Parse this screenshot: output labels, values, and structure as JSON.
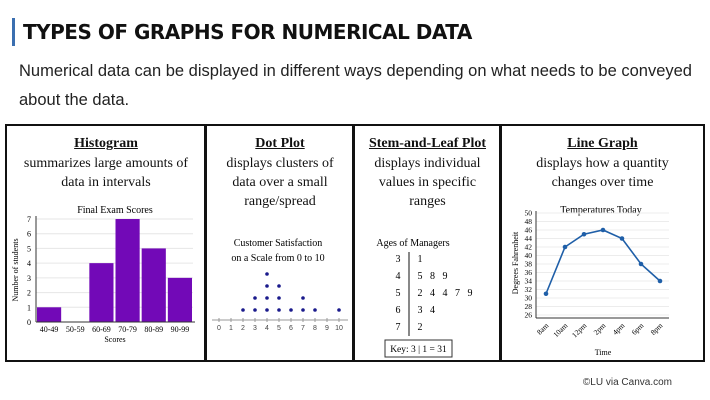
{
  "header": {
    "title": "TYPES OF GRAPHS FOR NUMERICAL DATA",
    "intro": "Numerical data can be displayed in different ways depending on what needs to be conveyed about the data."
  },
  "panels": [
    {
      "name": "Histogram",
      "desc": "summarizes large amounts of data in intervals"
    },
    {
      "name": "Dot Plot",
      "desc": "displays clusters of data over a small range/spread"
    },
    {
      "name": "Stem-and-Leaf Plot",
      "desc": "displays individual values in specific ranges"
    },
    {
      "name": "Line Graph",
      "desc": "displays how a quantity changes over time"
    }
  ],
  "chart_data": [
    {
      "type": "bar",
      "title": "Final Exam Scores",
      "xlabel": "Scores",
      "ylabel": "Number of students",
      "categories": [
        "40-49",
        "50-59",
        "60-69",
        "70-79",
        "80-89",
        "90-99"
      ],
      "values": [
        1,
        0,
        4,
        7,
        5,
        3
      ],
      "ylim": [
        0,
        7
      ],
      "yticks": [
        0,
        1,
        2,
        3,
        4,
        5,
        6,
        7
      ],
      "color": "#7209b7",
      "grid": true
    },
    {
      "type": "scatter",
      "subtype": "dot plot",
      "title": "Customer Satisfaction on a Scale from 0 to 10",
      "title_lines": [
        "Customer Satisfaction",
        "on a Scale from 0 to 10"
      ],
      "xticks": [
        0,
        1,
        2,
        3,
        4,
        5,
        6,
        7,
        8,
        9,
        10
      ],
      "counts": {
        "2": 1,
        "3": 2,
        "4": 4,
        "5": 3,
        "6": 1,
        "7": 2,
        "8": 1,
        "10": 1
      },
      "color": "#1a1a8c"
    },
    {
      "type": "table",
      "subtype": "stem-and-leaf",
      "title": "Ages of Managers",
      "rows": [
        {
          "stem": "3",
          "leaves": [
            "1"
          ]
        },
        {
          "stem": "4",
          "leaves": [
            "5",
            "8",
            "9"
          ]
        },
        {
          "stem": "5",
          "leaves": [
            "2",
            "4",
            "4",
            "7",
            "9"
          ]
        },
        {
          "stem": "6",
          "leaves": [
            "3",
            "4"
          ]
        },
        {
          "stem": "7",
          "leaves": [
            "2"
          ]
        }
      ],
      "key": "Key: 3 | 1 = 31"
    },
    {
      "type": "line",
      "title": "Temperatures Today",
      "xlabel": "Time",
      "ylabel": "Degrees Fahrenheit",
      "categories": [
        "8am",
        "10am",
        "12pm",
        "2pm",
        "4pm",
        "6pm",
        "8pm"
      ],
      "values": [
        31,
        42,
        45,
        46,
        44,
        38,
        34
      ],
      "ylim": [
        26,
        50
      ],
      "yticks": [
        26,
        28,
        30,
        32,
        34,
        36,
        38,
        40,
        42,
        44,
        46,
        48,
        50
      ],
      "color": "#1f5fa8",
      "grid": true
    }
  ],
  "credit": "©LU via Canva.com"
}
